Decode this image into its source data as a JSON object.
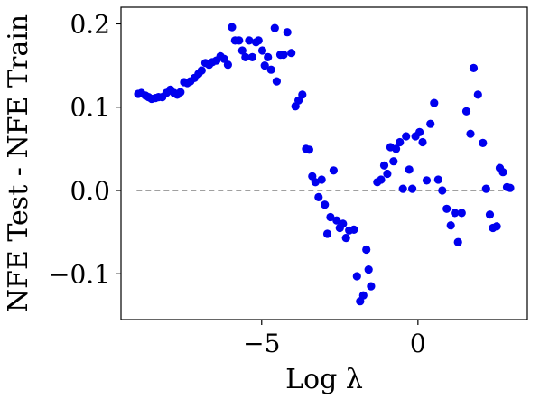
{
  "chart_data": {
    "type": "scatter",
    "title": "",
    "xlabel": "Log λ",
    "ylabel": "NFE Test - NFE Train",
    "xlim": [
      -9.5,
      3.5
    ],
    "ylim": [
      -0.155,
      0.22
    ],
    "xticks": [
      {
        "value": -5,
        "label": "−5"
      },
      {
        "value": 0,
        "label": "0"
      }
    ],
    "yticks": [
      {
        "value": -0.1,
        "label": "−0.1"
      },
      {
        "value": 0.0,
        "label": "0.0"
      },
      {
        "value": 0.1,
        "label": "0.1"
      },
      {
        "value": 0.2,
        "label": "0.2"
      }
    ],
    "grid": false,
    "reference_line": {
      "y": 0.0,
      "style": "dashed",
      "color": "#808080"
    },
    "point_color": "#0000ee",
    "points": [
      [
        -8.95,
        0.116
      ],
      [
        -8.85,
        0.117
      ],
      [
        -8.72,
        0.114
      ],
      [
        -8.62,
        0.112
      ],
      [
        -8.52,
        0.11
      ],
      [
        -8.4,
        0.111
      ],
      [
        -8.3,
        0.112
      ],
      [
        -8.18,
        0.112
      ],
      [
        -8.05,
        0.117
      ],
      [
        -7.92,
        0.121
      ],
      [
        -7.8,
        0.117
      ],
      [
        -7.7,
        0.115
      ],
      [
        -7.6,
        0.118
      ],
      [
        -7.48,
        0.13
      ],
      [
        -7.38,
        0.129
      ],
      [
        -7.28,
        0.131
      ],
      [
        -7.15,
        0.135
      ],
      [
        -7.02,
        0.14
      ],
      [
        -6.92,
        0.144
      ],
      [
        -6.8,
        0.153
      ],
      [
        -6.68,
        0.151
      ],
      [
        -6.58,
        0.154
      ],
      [
        -6.45,
        0.156
      ],
      [
        -6.32,
        0.161
      ],
      [
        -6.2,
        0.158
      ],
      [
        -6.08,
        0.151
      ],
      [
        -5.95,
        0.196
      ],
      [
        -5.85,
        0.18
      ],
      [
        -5.72,
        0.18
      ],
      [
        -5.62,
        0.168
      ],
      [
        -5.52,
        0.16
      ],
      [
        -5.4,
        0.18
      ],
      [
        -5.3,
        0.16
      ],
      [
        -5.18,
        0.178
      ],
      [
        -5.1,
        0.18
      ],
      [
        -4.98,
        0.168
      ],
      [
        -4.9,
        0.15
      ],
      [
        -4.8,
        0.16
      ],
      [
        -4.7,
        0.145
      ],
      [
        -4.58,
        0.195
      ],
      [
        -4.52,
        0.131
      ],
      [
        -4.4,
        0.163
      ],
      [
        -4.3,
        0.163
      ],
      [
        -4.18,
        0.19
      ],
      [
        -4.05,
        0.165
      ],
      [
        -3.92,
        0.101
      ],
      [
        -3.82,
        0.108
      ],
      [
        -3.7,
        0.115
      ],
      [
        -3.58,
        0.05
      ],
      [
        -3.48,
        0.049
      ],
      [
        -3.38,
        0.017
      ],
      [
        -3.28,
        0.01
      ],
      [
        -3.18,
        -0.008
      ],
      [
        -3.08,
        0.013
      ],
      [
        -2.98,
        -0.017
      ],
      [
        -2.9,
        -0.052
      ],
      [
        -2.8,
        -0.032
      ],
      [
        -2.7,
        0.024
      ],
      [
        -2.6,
        -0.036
      ],
      [
        -2.5,
        -0.045
      ],
      [
        -2.4,
        -0.04
      ],
      [
        -2.3,
        -0.057
      ],
      [
        -2.2,
        -0.048
      ],
      [
        -2.05,
        -0.047
      ],
      [
        -1.95,
        -0.103
      ],
      [
        -1.85,
        -0.133
      ],
      [
        -1.75,
        -0.126
      ],
      [
        -1.65,
        -0.071
      ],
      [
        -1.58,
        -0.095
      ],
      [
        -1.5,
        -0.115
      ],
      [
        -1.3,
        0.01
      ],
      [
        -1.18,
        0.013
      ],
      [
        -1.08,
        0.03
      ],
      [
        -0.98,
        0.02
      ],
      [
        -0.88,
        0.052
      ],
      [
        -0.78,
        0.035
      ],
      [
        -0.7,
        0.05
      ],
      [
        -0.58,
        0.058
      ],
      [
        -0.48,
        0.002
      ],
      [
        -0.38,
        0.065
      ],
      [
        -0.28,
        0.025
      ],
      [
        -0.18,
        0.002
      ],
      [
        -0.08,
        0.065
      ],
      [
        0.05,
        0.07
      ],
      [
        0.15,
        0.058
      ],
      [
        0.28,
        0.012
      ],
      [
        0.4,
        0.08
      ],
      [
        0.52,
        0.105
      ],
      [
        0.65,
        0.013
      ],
      [
        0.78,
        0.0
      ],
      [
        0.92,
        -0.022
      ],
      [
        1.05,
        -0.042
      ],
      [
        1.18,
        -0.027
      ],
      [
        1.28,
        -0.062
      ],
      [
        1.4,
        -0.027
      ],
      [
        1.55,
        0.095
      ],
      [
        1.68,
        0.068
      ],
      [
        1.78,
        0.147
      ],
      [
        1.92,
        0.115
      ],
      [
        2.08,
        0.057
      ],
      [
        2.18,
        0.002
      ],
      [
        2.3,
        -0.029
      ],
      [
        2.4,
        -0.045
      ],
      [
        2.52,
        -0.043
      ],
      [
        2.62,
        0.027
      ],
      [
        2.72,
        0.022
      ],
      [
        2.85,
        0.004
      ],
      [
        2.95,
        0.003
      ]
    ]
  }
}
